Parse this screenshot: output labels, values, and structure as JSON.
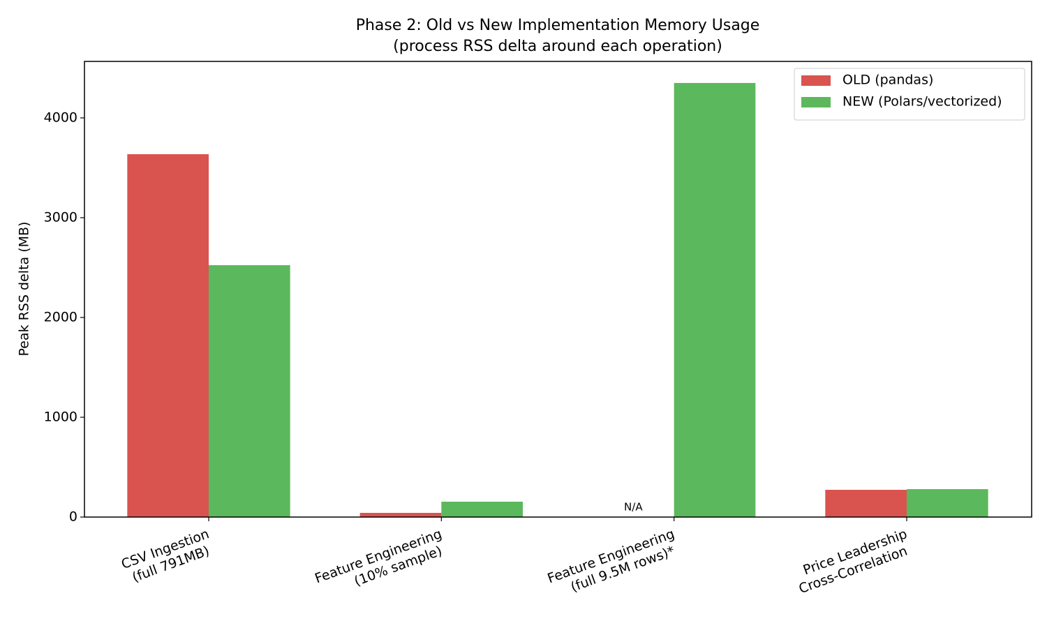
{
  "chart_data": {
    "type": "bar",
    "title": "Phase 2: Old vs New Implementation Memory Usage",
    "subtitle": "(process RSS delta around each operation)",
    "y_label": "Peak RSS delta (MB)",
    "categories": [
      [
        "CSV Ingestion",
        "(full 791MB)"
      ],
      [
        "Feature Engineering",
        "(10% sample)"
      ],
      [
        "Feature Engineering",
        "(full 9.5M rows)*"
      ],
      [
        "Price Leadership",
        "Cross-Correlation"
      ]
    ],
    "series": [
      {
        "name": "OLD (pandas)",
        "color": "#d9534f",
        "values": [
          3636,
          42,
          null,
          273
        ],
        "value_labels": [
          null,
          null,
          "N/A",
          null
        ]
      },
      {
        "name": "NEW (Polars/vectorized)",
        "color": "#5cb85c",
        "values": [
          2524,
          154,
          4350,
          280
        ]
      }
    ],
    "ylim": [
      0,
      4566
    ],
    "yticks": [
      0,
      1000,
      2000,
      3000,
      4000
    ],
    "legend": "upper right"
  }
}
